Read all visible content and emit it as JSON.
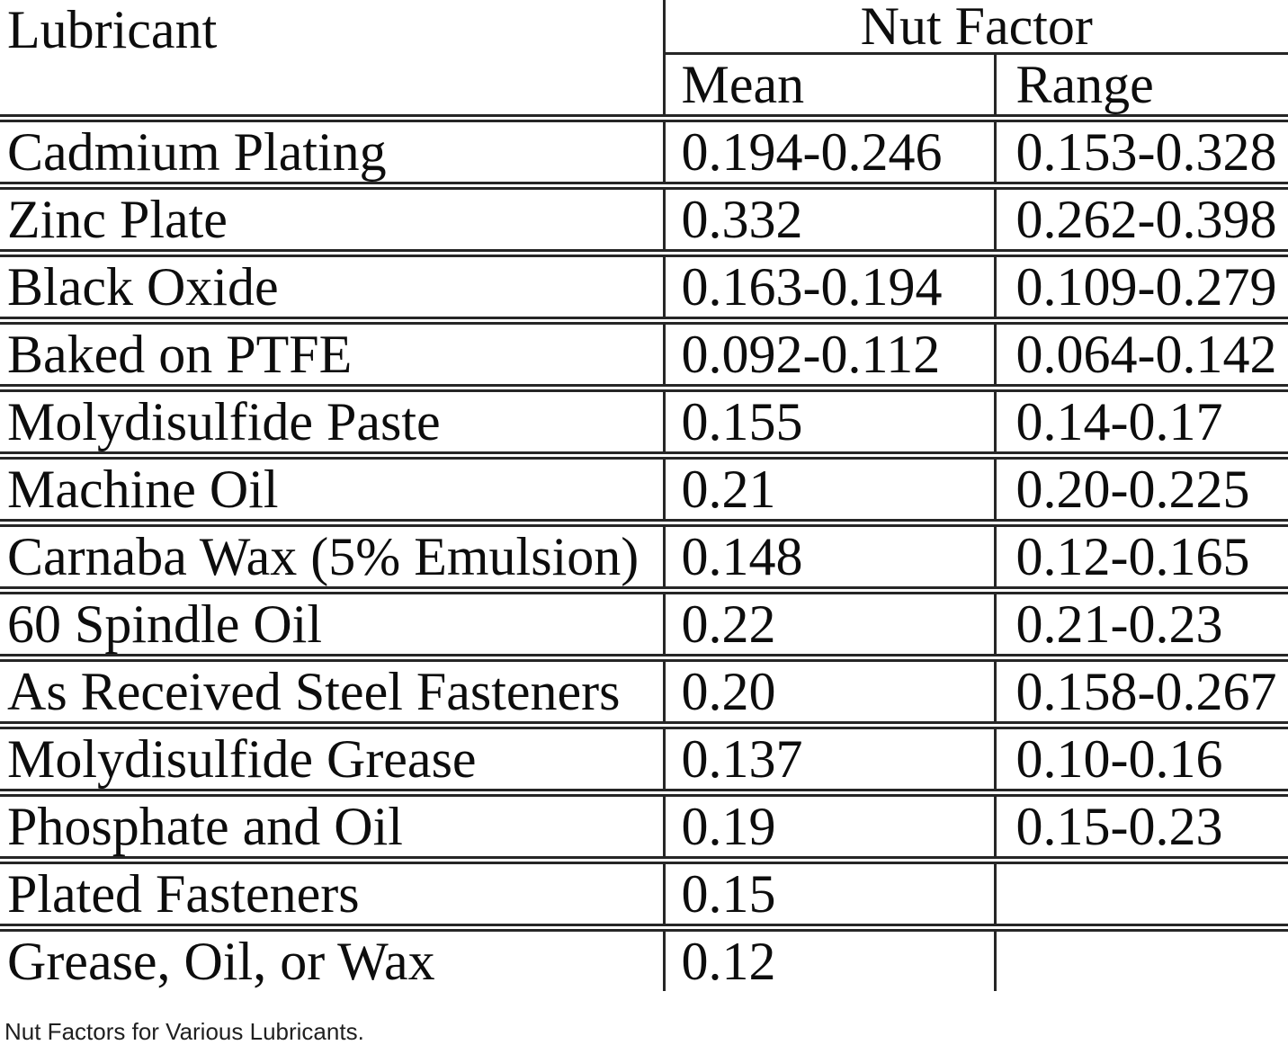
{
  "table": {
    "headers": {
      "lubricant": "Lubricant",
      "group": "Nut Factor",
      "mean": "Mean",
      "range": "Range"
    },
    "rows": [
      {
        "lubricant": "Cadmium Plating",
        "mean": "0.194-0.246",
        "range": "0.153-0.328"
      },
      {
        "lubricant": "Zinc Plate",
        "mean": "0.332",
        "range": "0.262-0.398"
      },
      {
        "lubricant": "Black Oxide",
        "mean": "0.163-0.194",
        "range": "0.109-0.279"
      },
      {
        "lubricant": "Baked on PTFE",
        "mean": "0.092-0.112",
        "range": "0.064-0.142"
      },
      {
        "lubricant": "Molydisulfide Paste",
        "mean": "0.155",
        "range": "0.14-0.17"
      },
      {
        "lubricant": "Machine Oil",
        "mean": "0.21",
        "range": "0.20-0.225"
      },
      {
        "lubricant": "Carnaba Wax (5% Emulsion)",
        "mean": "0.148",
        "range": "0.12-0.165"
      },
      {
        "lubricant": "60 Spindle Oil",
        "mean": "0.22",
        "range": "0.21-0.23"
      },
      {
        "lubricant": "As Received Steel Fasteners",
        "mean": "0.20",
        "range": "0.158-0.267"
      },
      {
        "lubricant": "Molydisulfide Grease",
        "mean": "0.137",
        "range": "0.10-0.16"
      },
      {
        "lubricant": "Phosphate and Oil",
        "mean": "0.19",
        "range": "0.15-0.23"
      },
      {
        "lubricant": "Plated Fasteners",
        "mean": "0.15",
        "range": ""
      },
      {
        "lubricant": "Grease, Oil, or Wax",
        "mean": "0.12",
        "range": ""
      }
    ]
  },
  "caption": "Nut Factors for Various Lubricants.",
  "colors": {
    "text": "#0d0d0d",
    "rule": "#262626",
    "background": "#ffffff"
  },
  "chart_data": {
    "type": "table",
    "title": "Nut Factors for Various Lubricants.",
    "columns": [
      "Lubricant",
      "Nut Factor Mean",
      "Nut Factor Range"
    ],
    "rows": [
      [
        "Cadmium Plating",
        "0.194-0.246",
        "0.153-0.328"
      ],
      [
        "Zinc Plate",
        "0.332",
        "0.262-0.398"
      ],
      [
        "Black Oxide",
        "0.163-0.194",
        "0.109-0.279"
      ],
      [
        "Baked on PTFE",
        "0.092-0.112",
        "0.064-0.142"
      ],
      [
        "Molydisulfide Paste",
        "0.155",
        "0.14-0.17"
      ],
      [
        "Machine Oil",
        "0.21",
        "0.20-0.225"
      ],
      [
        "Carnaba Wax (5% Emulsion)",
        "0.148",
        "0.12-0.165"
      ],
      [
        "60 Spindle Oil",
        "0.22",
        "0.21-0.23"
      ],
      [
        "As Received Steel Fasteners",
        "0.20",
        "0.158-0.267"
      ],
      [
        "Molydisulfide Grease",
        "0.137",
        "0.10-0.16"
      ],
      [
        "Phosphate and Oil",
        "0.19",
        "0.15-0.23"
      ],
      [
        "Plated Fasteners",
        "0.15",
        ""
      ],
      [
        "Grease, Oil, or Wax",
        "0.12",
        ""
      ]
    ]
  }
}
